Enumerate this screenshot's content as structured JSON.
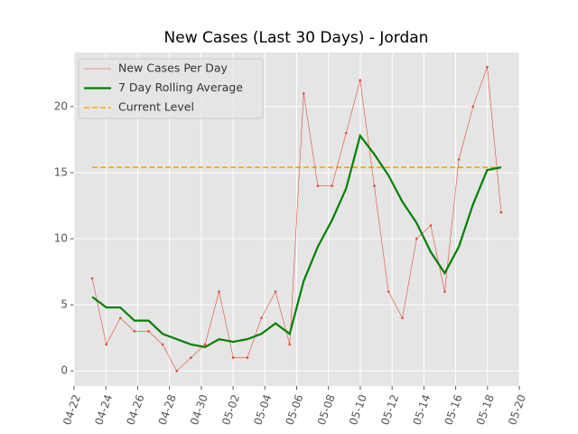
{
  "chart_data": {
    "type": "line",
    "title": "New Cases (Last 30 Days) - Jordan",
    "x": [
      1.14,
      2.03,
      2.91,
      3.8,
      4.69,
      5.57,
      6.46,
      7.35,
      8.24,
      9.12,
      10.01,
      10.9,
      11.78,
      12.67,
      13.56,
      14.44,
      15.33,
      16.22,
      17.11,
      17.99,
      18.88,
      19.77,
      20.65,
      21.54,
      22.43,
      23.31,
      24.2,
      25.09,
      25.98,
      26.86
    ],
    "series": [
      {
        "name": "New Cases Per Day",
        "color": "#e24a33",
        "values": [
          7,
          2,
          4,
          3,
          3,
          2,
          0,
          1,
          2,
          6,
          1,
          1,
          4,
          6,
          2,
          21,
          14,
          14,
          18,
          22,
          14,
          6,
          4,
          10,
          11,
          6,
          16,
          20,
          23,
          12
        ]
      },
      {
        "name": "7 Day Rolling Average",
        "color": "#008000",
        "values": [
          5.6,
          4.8,
          4.8,
          3.8,
          3.8,
          2.8,
          2.4,
          2.0,
          1.8,
          2.4,
          2.2,
          2.4,
          2.8,
          3.6,
          2.8,
          6.8,
          9.4,
          11.4,
          13.8,
          17.8,
          16.4,
          14.8,
          12.8,
          11.2,
          9.0,
          7.4,
          9.4,
          12.6,
          15.2,
          15.4
        ]
      }
    ],
    "current_level": {
      "name": "Current Level",
      "color": "#ffa500",
      "value": 15.4
    },
    "xlim": [
      0,
      28
    ],
    "xticks": [
      {
        "value": 0,
        "label": "04-22"
      },
      {
        "value": 2,
        "label": "04-24"
      },
      {
        "value": 4,
        "label": "04-26"
      },
      {
        "value": 6,
        "label": "04-28"
      },
      {
        "value": 8,
        "label": "04-30"
      },
      {
        "value": 10,
        "label": "05-02"
      },
      {
        "value": 12,
        "label": "05-04"
      },
      {
        "value": 14,
        "label": "05-06"
      },
      {
        "value": 16,
        "label": "05-08"
      },
      {
        "value": 18,
        "label": "05-10"
      },
      {
        "value": 20,
        "label": "05-12"
      },
      {
        "value": 22,
        "label": "05-14"
      },
      {
        "value": 24,
        "label": "05-16"
      },
      {
        "value": 26,
        "label": "05-18"
      },
      {
        "value": 28,
        "label": "05-20"
      }
    ],
    "ylim": [
      -1.15,
      24.1
    ],
    "yticks": [
      0,
      5,
      10,
      15,
      20
    ],
    "grid": true,
    "legend": "upper left"
  }
}
